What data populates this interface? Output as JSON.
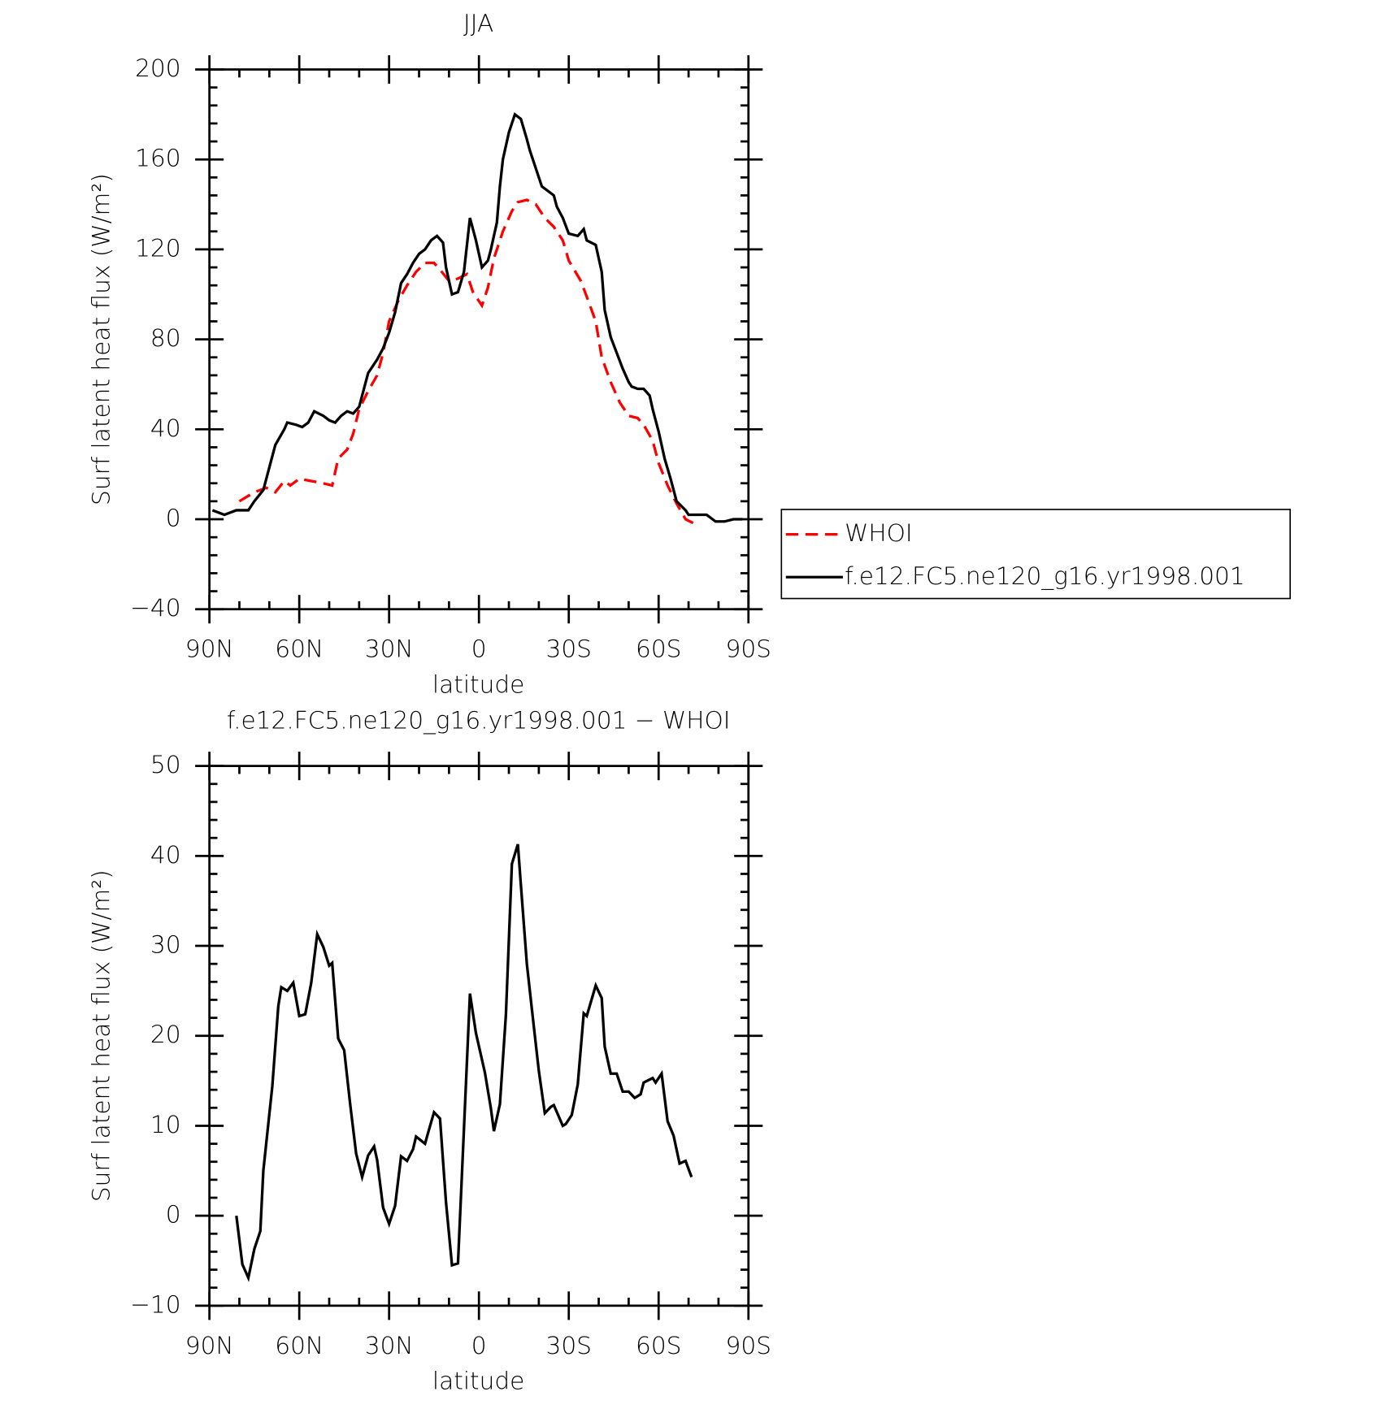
{
  "chart_data": [
    {
      "type": "line",
      "title": "JJA",
      "xlabel": "latitude",
      "ylabel": "Surf latent heat flux (W/m²)",
      "xlim": [
        90,
        -90
      ],
      "xticks": [
        {
          "value": 90,
          "label": "90N"
        },
        {
          "value": 60,
          "label": "60N"
        },
        {
          "value": 30,
          "label": "30N"
        },
        0,
        {
          "value": -30,
          "label": "30S"
        },
        {
          "value": -60,
          "label": "60S"
        },
        {
          "value": -90,
          "label": "90S"
        }
      ],
      "ylim": [
        -40,
        200
      ],
      "yticks": [
        {
          "value": -40,
          "label": "−40"
        },
        0,
        40,
        80,
        120,
        160,
        200
      ],
      "legend": "outside right",
      "series": [
        {
          "name": "WHOI",
          "color": "#ff0000",
          "line_style": "dashed",
          "x": [
            80,
            75,
            71,
            68,
            65,
            63,
            60,
            56,
            52,
            49,
            47,
            44,
            42,
            40,
            37,
            34,
            32,
            30,
            27,
            24,
            21,
            18,
            15,
            13,
            10,
            7,
            4,
            2,
            -1,
            -3,
            -5,
            -8,
            -11,
            -13,
            -16,
            -19,
            -22,
            -25,
            -28,
            -30,
            -34,
            -36,
            -39,
            -41,
            -44,
            -47,
            -50,
            -53,
            -55,
            -58,
            -60,
            -63,
            -66,
            -69,
            -72
          ],
          "values": [
            8,
            12,
            14,
            12,
            17,
            15,
            18,
            17,
            16,
            15,
            27,
            31,
            38,
            49,
            57,
            64,
            74,
            88,
            97,
            104,
            110,
            114,
            114,
            111,
            106,
            107,
            109,
            101,
            95,
            103,
            116,
            128,
            137,
            141,
            142,
            140,
            134,
            130,
            124,
            115,
            106,
            99,
            88,
            72,
            61,
            52,
            46,
            45,
            42,
            35,
            25,
            15,
            7,
            0,
            -2
          ]
        },
        {
          "name": "f.e12.FC5.ne120_g16.yr1998.001",
          "color": "#000000",
          "line_style": "solid",
          "x": [
            89,
            85,
            81,
            77,
            75,
            72,
            70,
            68,
            65,
            64,
            61,
            59,
            57,
            55,
            52,
            50,
            48,
            46,
            44,
            42,
            40,
            39,
            37,
            34,
            32,
            30,
            28,
            26,
            24,
            22,
            20,
            18,
            16,
            14,
            12,
            11,
            9,
            7,
            5,
            3,
            1,
            -1,
            -3,
            -4,
            -6,
            -7,
            -8,
            -10,
            -12,
            -14,
            -16,
            -17,
            -19,
            -21,
            -23,
            -25,
            -26,
            -28,
            -30,
            -33,
            -35,
            -36,
            -39,
            -41,
            -42,
            -44,
            -46,
            -48,
            -50,
            -51,
            -53,
            -55,
            -57,
            -58,
            -60,
            -62,
            -64,
            -66,
            -69,
            -70,
            -73,
            -76,
            -77,
            -79,
            -82,
            -85,
            -88
          ],
          "values": [
            4,
            2,
            4,
            4,
            8,
            13,
            23,
            33,
            40,
            43,
            42,
            41,
            43,
            48,
            46,
            44,
            43,
            46,
            48,
            47,
            50,
            55,
            65,
            71,
            76,
            83,
            92,
            105,
            109,
            114,
            118,
            120,
            124,
            126,
            123,
            112,
            100,
            101,
            110,
            134,
            124,
            112,
            115,
            120,
            132,
            148,
            160,
            172,
            180,
            178,
            169,
            164,
            156,
            148,
            146,
            144,
            139,
            134,
            127,
            126,
            129,
            124,
            122,
            110,
            93,
            81,
            74,
            67,
            61,
            59,
            58,
            58,
            55,
            49,
            39,
            27,
            18,
            8,
            4,
            2,
            2,
            2,
            1,
            -1,
            -1,
            0,
            0
          ]
        }
      ]
    },
    {
      "type": "line",
      "title": "f.e12.FC5.ne120_g16.yr1998.001 − WHOI",
      "xlabel": "latitude",
      "ylabel": "Surf latent heat flux (W/m²)",
      "xlim": [
        90,
        -90
      ],
      "xticks": [
        {
          "value": 90,
          "label": "90N"
        },
        {
          "value": 60,
          "label": "60N"
        },
        {
          "value": 30,
          "label": "30N"
        },
        0,
        {
          "value": -30,
          "label": "30S"
        },
        {
          "value": -60,
          "label": "60S"
        },
        {
          "value": -90,
          "label": "90S"
        }
      ],
      "ylim": [
        -10,
        50
      ],
      "yticks": [
        {
          "value": -10,
          "label": "−10"
        },
        0,
        10,
        20,
        30,
        40,
        50
      ],
      "series": [
        {
          "color": "#000000",
          "line_style": "solid",
          "x": [
            81,
            79,
            77,
            75,
            73,
            72,
            69,
            67,
            66,
            64,
            62,
            60,
            58,
            56,
            54,
            52,
            50,
            49,
            47,
            45,
            43,
            41,
            39,
            37,
            35,
            34,
            32,
            30,
            28,
            26,
            24,
            22,
            21,
            18,
            17,
            15,
            13,
            11,
            9,
            7,
            3,
            1,
            -2,
            -4,
            -5,
            -7,
            -9,
            -11,
            -13,
            -14,
            -16,
            -18,
            -20,
            -22,
            -24,
            -25,
            -28,
            -29,
            -31,
            -33,
            -35,
            -36,
            -39,
            -41,
            -42,
            -44,
            -46,
            -48,
            -50,
            -52,
            -54,
            -55,
            -58,
            -59,
            -61,
            -63,
            -65,
            -67,
            -69,
            -71
          ],
          "values": [
            0,
            -5.4,
            -6.9,
            -3.7,
            -1.7,
            5,
            14.4,
            23.3,
            25.4,
            25,
            25.9,
            22.2,
            22.4,
            25.9,
            31.3,
            29.9,
            27.8,
            28.1,
            19.7,
            18.4,
            12.4,
            6.9,
            4.3,
            6.7,
            7.7,
            6.2,
            0.9,
            -0.9,
            1.1,
            6.6,
            6.1,
            7.4,
            8.8,
            8,
            9.2,
            11.5,
            10.8,
            1.5,
            -5.5,
            -5.3,
            24.7,
            20.3,
            15.9,
            11.9,
            9.4,
            12.4,
            22.3,
            39.1,
            41.3,
            36.8,
            28,
            22,
            16.1,
            11.4,
            12.1,
            12.3,
            10,
            10.2,
            11.2,
            14.6,
            22.5,
            22.2,
            25.6,
            24.2,
            18.8,
            15.8,
            15.8,
            13.8,
            13.8,
            13.1,
            13.5,
            14.8,
            15.3,
            14.8,
            15.8,
            10.5,
            8.9,
            5.8,
            6.1,
            4.3
          ]
        }
      ]
    }
  ]
}
